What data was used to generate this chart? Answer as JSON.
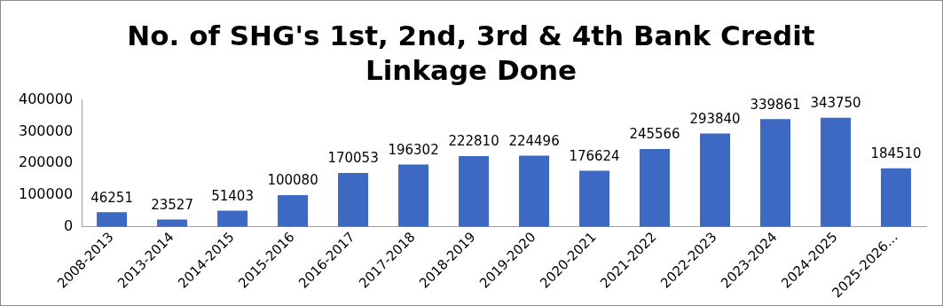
{
  "chart_data": {
    "type": "bar",
    "title": "No. of SHG's 1st, 2nd, 3rd & 4th Bank Credit Linkage Done",
    "categories": [
      "2008-2013",
      "2013-2014",
      "2014-2015",
      "2015-2016",
      "2016-2017",
      "2017-2018",
      "2018-2019",
      "2019-2020",
      "2020-2021",
      "2021-2022",
      "2022-2023",
      "2023-2024",
      "2024-2025",
      "2025-2026…"
    ],
    "values": [
      46251,
      23527,
      51403,
      100080,
      170053,
      196302,
      222810,
      224496,
      176624,
      245566,
      293840,
      339861,
      343750,
      184510
    ],
    "color": "#3d69c2",
    "ylim": [
      0,
      400000
    ],
    "yticks": [
      0,
      100000,
      200000,
      300000,
      400000
    ],
    "grid": false,
    "legend": false,
    "data_labels": true
  }
}
